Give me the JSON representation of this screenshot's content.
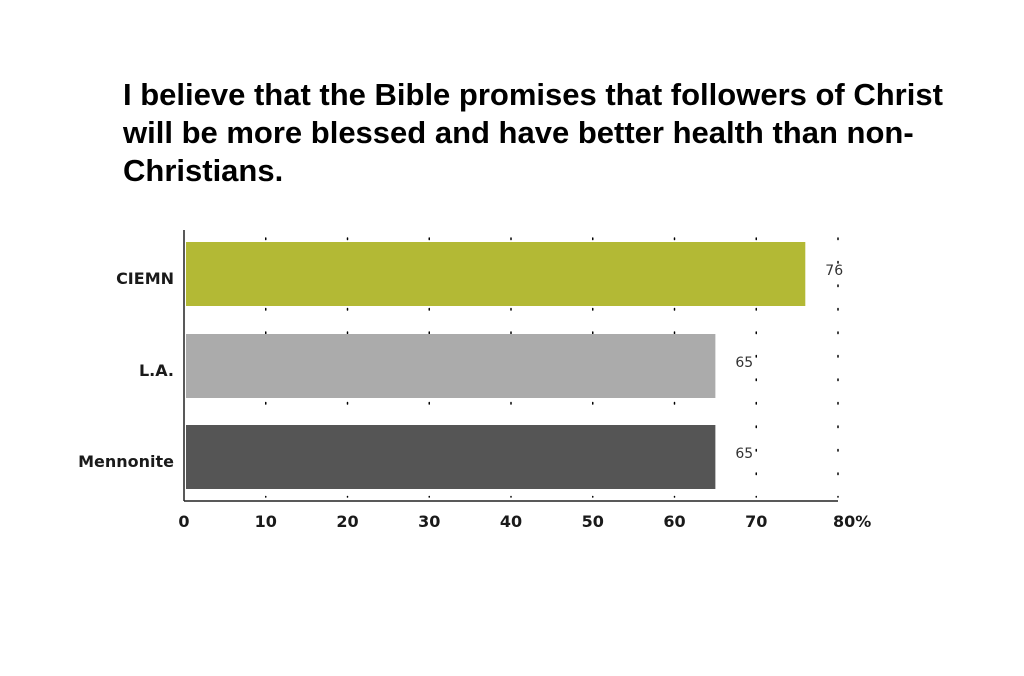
{
  "chart_data": {
    "type": "bar",
    "orientation": "horizontal",
    "title": "I believe that the Bible promises that followers of Christ will be more blessed and have better health than non-Christians.",
    "categories": [
      "CIEMN",
      "L.A.",
      "Mennonite"
    ],
    "values": [
      76,
      65,
      65
    ],
    "data_labels": [
      "76",
      "65",
      "65"
    ],
    "colors": [
      "#b3b935",
      "#ababab",
      "#555555"
    ],
    "xlim": [
      0,
      80
    ],
    "x_ticks": [
      0,
      10,
      20,
      30,
      40,
      50,
      60,
      70,
      80
    ],
    "x_tick_labels": [
      "0",
      "10",
      "20",
      "30",
      "40",
      "50",
      "60",
      "70",
      "80%"
    ],
    "unit": "%",
    "grid": "dotted vertical",
    "legend": "none"
  }
}
